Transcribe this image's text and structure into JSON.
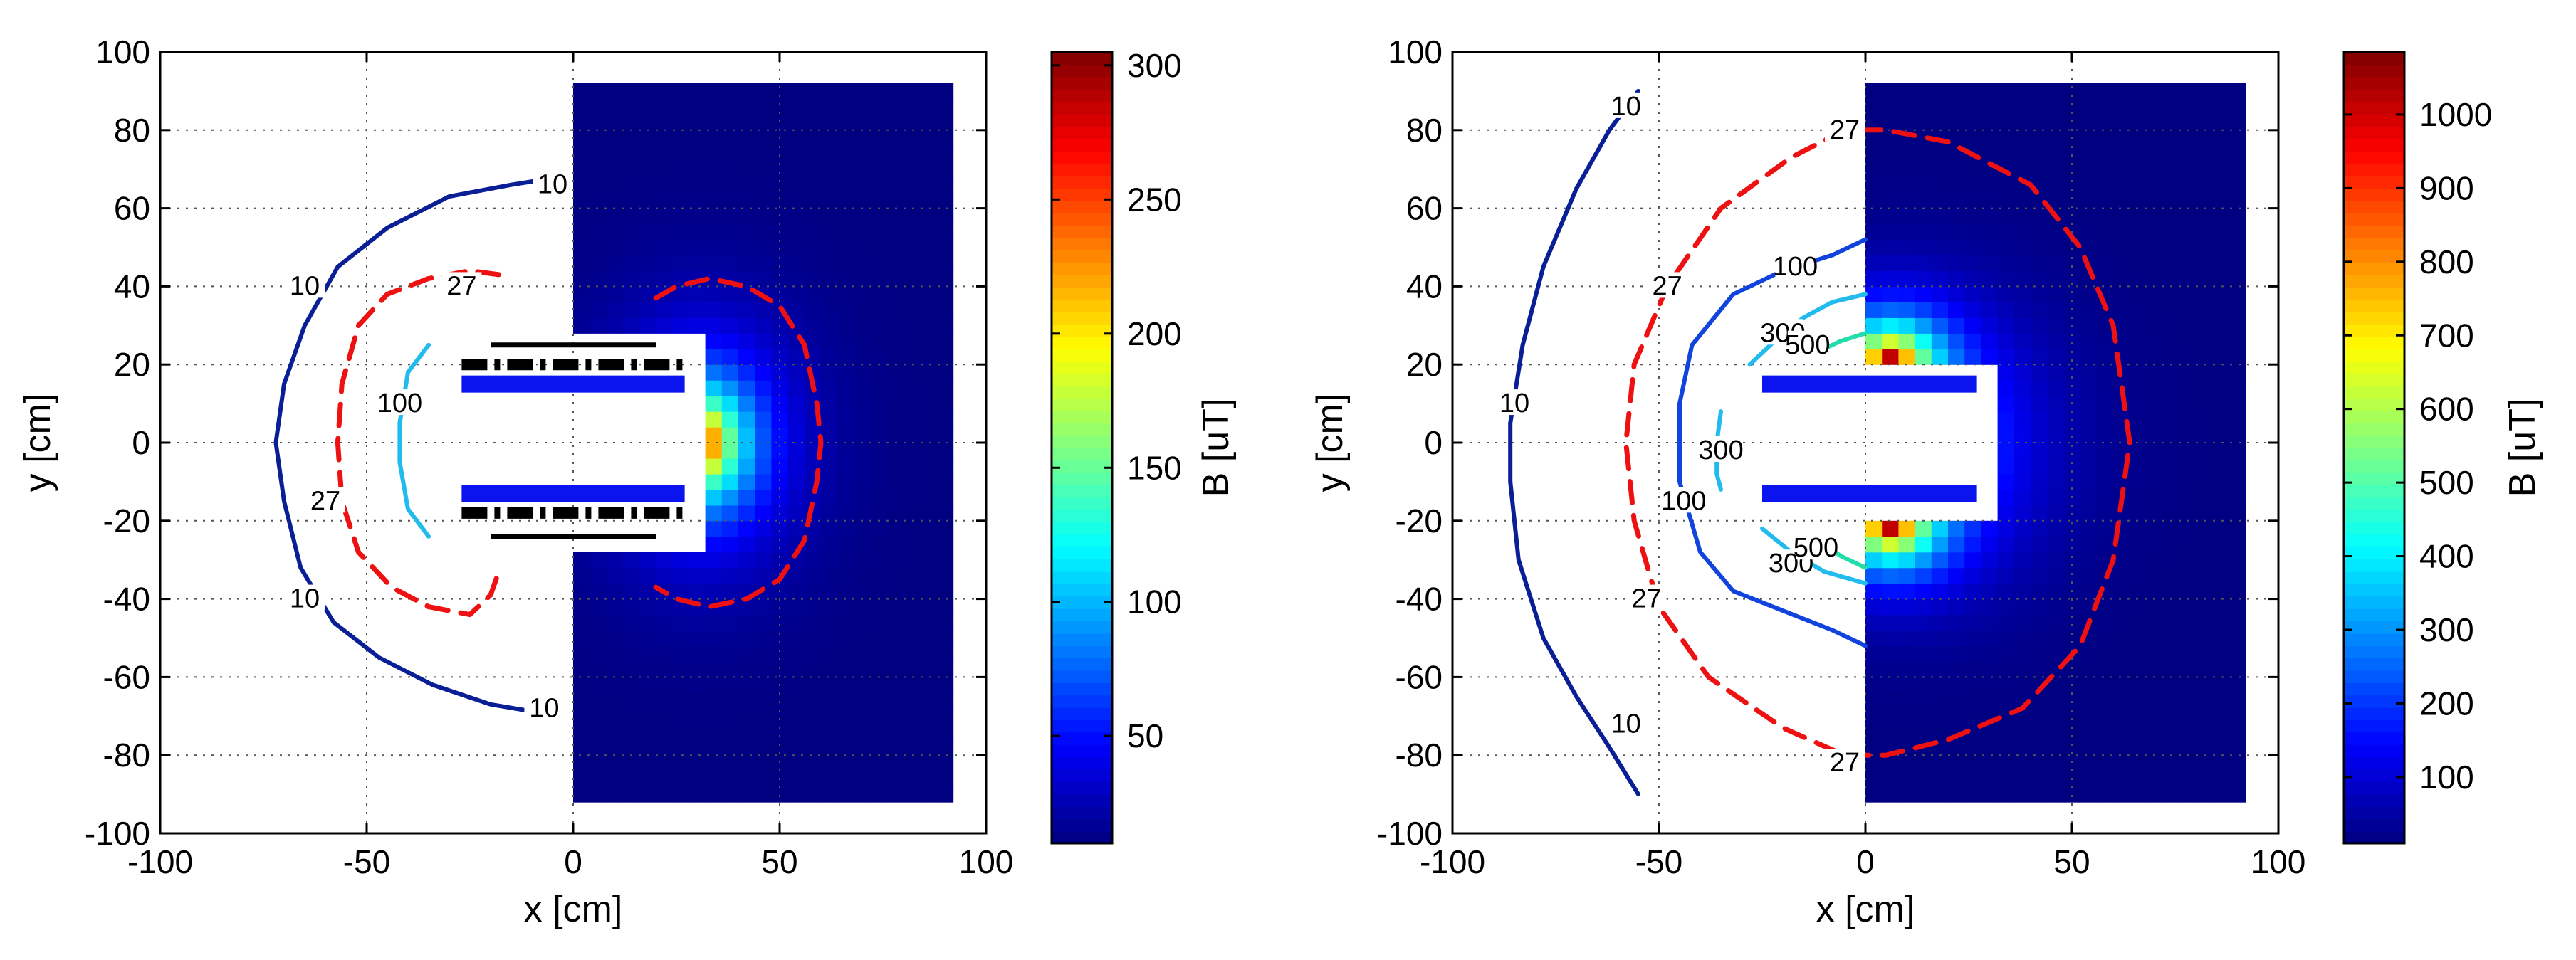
{
  "chart_data": [
    {
      "type": "heatmap",
      "title": "",
      "xlabel": "x [cm]",
      "ylabel": "y [cm]",
      "xlim": [
        -100,
        100
      ],
      "ylim": [
        -100,
        100
      ],
      "xticks": [
        -100,
        -50,
        0,
        50,
        100
      ],
      "yticks": [
        -100,
        -80,
        -60,
        -40,
        -20,
        0,
        20,
        40,
        60,
        80,
        100
      ],
      "grid": true,
      "colorbar": {
        "label": "B [uT]",
        "range": [
          10,
          305
        ],
        "ticks": [
          50,
          100,
          150,
          200,
          250,
          300
        ]
      },
      "field_region": {
        "x": [
          0,
          92
        ],
        "y": [
          -92,
          92
        ],
        "cutout": {
          "x": [
            0,
            30
          ],
          "y": [
            -29,
            29
          ]
        },
        "max_value": 305,
        "peak_location": [
          31,
          0
        ]
      },
      "geometry": {
        "blue_bars": [
          {
            "x": [
              -27,
              27
            ],
            "y": 15
          },
          {
            "x": [
              -27,
              27
            ],
            "y": -13
          }
        ],
        "dash_lines": [
          {
            "x": [
              -27,
              27
            ],
            "y": 20
          },
          {
            "x": [
              -27,
              27
            ],
            "y": -18
          }
        ],
        "black_lines": [
          {
            "x": [
              -20,
              20
            ],
            "y": 25
          },
          {
            "x": [
              -20,
              20
            ],
            "y": -24
          }
        ]
      },
      "contours": [
        {
          "level": 10,
          "label": "10",
          "color": "#0a1e96",
          "style": "solid",
          "points": [
            [
              -3,
              68
            ],
            [
              -15,
              66
            ],
            [
              -30,
              63
            ],
            [
              -45,
              55
            ],
            [
              -57,
              45
            ],
            [
              -65,
              30
            ],
            [
              -70,
              15
            ],
            [
              -72,
              0
            ],
            [
              -70,
              -15
            ],
            [
              -66,
              -32
            ],
            [
              -58,
              -46
            ],
            [
              -47,
              -55
            ],
            [
              -34,
              -62
            ],
            [
              -20,
              -67
            ],
            [
              -3,
              -70
            ]
          ],
          "label_points": [
            [
              -5,
              66
            ],
            [
              -65,
              40
            ],
            [
              -65,
              -40
            ],
            [
              -7,
              -68
            ]
          ]
        },
        {
          "level": 27,
          "label": "27",
          "color": "#ee1111",
          "style": "dashed",
          "points": [
            [
              -18,
              43
            ],
            [
              -25,
              44
            ],
            [
              -35,
              42
            ],
            [
              -45,
              38
            ],
            [
              -52,
              30
            ],
            [
              -56,
              15
            ],
            [
              -57,
              0
            ],
            [
              -56,
              -15
            ],
            [
              -52,
              -28
            ],
            [
              -44,
              -37
            ],
            [
              -35,
              -42
            ],
            [
              -25,
              -44
            ],
            [
              -20,
              -39
            ],
            [
              -18,
              -33
            ]
          ],
          "label_points": [
            [
              -27,
              40
            ],
            [
              -60,
              -15
            ]
          ]
        },
        {
          "level": 27,
          "label": "",
          "color": "#ee1111",
          "style": "dashed",
          "points": [
            [
              20,
              37
            ],
            [
              25,
              40
            ],
            [
              33,
              42
            ],
            [
              42,
              40
            ],
            [
              50,
              35
            ],
            [
              56,
              25
            ],
            [
              59,
              10
            ],
            [
              60,
              0
            ],
            [
              59,
              -10
            ],
            [
              56,
              -25
            ],
            [
              50,
              -35
            ],
            [
              42,
              -40
            ],
            [
              33,
              -42
            ],
            [
              25,
              -40
            ],
            [
              20,
              -37
            ]
          ],
          "label_points": []
        },
        {
          "level": 100,
          "label": "100",
          "color": "#22bbee",
          "style": "solid",
          "points": [
            [
              -35,
              25
            ],
            [
              -40,
              18
            ],
            [
              -42,
              5
            ],
            [
              -42,
              -5
            ],
            [
              -40,
              -17
            ],
            [
              -35,
              -24
            ]
          ],
          "label_points": [
            [
              -42,
              10
            ]
          ]
        }
      ]
    },
    {
      "type": "heatmap",
      "title": "",
      "xlabel": "x [cm]",
      "ylabel": "y [cm]",
      "xlim": [
        -100,
        100
      ],
      "ylim": [
        -100,
        100
      ],
      "xticks": [
        -100,
        -50,
        0,
        50,
        100
      ],
      "yticks": [
        -100,
        -80,
        -60,
        -40,
        -20,
        0,
        20,
        40,
        60,
        80,
        100
      ],
      "grid": true,
      "colorbar": {
        "label": "B [uT]",
        "range": [
          10,
          1085
        ],
        "ticks": [
          100,
          200,
          300,
          400,
          500,
          600,
          700,
          800,
          900,
          1000
        ]
      },
      "field_region": {
        "x": [
          0,
          92
        ],
        "y": [
          -92,
          92
        ],
        "cutout": {
          "x": [
            0,
            30
          ],
          "y": [
            -18,
            18
          ]
        },
        "max_value": 1085,
        "peak_location": [
          5,
          20
        ]
      },
      "geometry": {
        "blue_bars": [
          {
            "x": [
              -25,
              27
            ],
            "y": 15
          },
          {
            "x": [
              -25,
              27
            ],
            "y": -13
          }
        ],
        "dash_lines": [],
        "black_lines": []
      },
      "contours": [
        {
          "level": 10,
          "label": "10",
          "color": "#0a1e96",
          "style": "solid",
          "points": [
            [
              -55,
              90
            ],
            [
              -62,
              80
            ],
            [
              -70,
              65
            ],
            [
              -78,
              45
            ],
            [
              -83,
              25
            ],
            [
              -86,
              5
            ],
            [
              -86,
              -10
            ],
            [
              -84,
              -30
            ],
            [
              -78,
              -50
            ],
            [
              -70,
              -65
            ],
            [
              -62,
              -78
            ],
            [
              -55,
              -90
            ]
          ],
          "label_points": [
            [
              -58,
              86
            ],
            [
              -85,
              10
            ],
            [
              -58,
              -72
            ]
          ]
        },
        {
          "level": 27,
          "label": "27",
          "color": "#ee1111",
          "style": "dashed",
          "points": [
            [
              -5,
              80
            ],
            [
              -18,
              73
            ],
            [
              -35,
              60
            ],
            [
              -48,
              40
            ],
            [
              -56,
              20
            ],
            [
              -58,
              0
            ],
            [
              -56,
              -20
            ],
            [
              -50,
              -42
            ],
            [
              -38,
              -60
            ],
            [
              -20,
              -73
            ],
            [
              -5,
              -80
            ],
            [
              5,
              -80
            ],
            [
              20,
              -76
            ],
            [
              38,
              -68
            ],
            [
              52,
              -52
            ],
            [
              60,
              -30
            ],
            [
              64,
              0
            ],
            [
              60,
              30
            ],
            [
              52,
              50
            ],
            [
              40,
              66
            ],
            [
              20,
              77
            ],
            [
              5,
              80
            ],
            [
              -5,
              80
            ]
          ],
          "label_points": [
            [
              -5,
              80
            ],
            [
              -48,
              40
            ],
            [
              -53,
              -40
            ],
            [
              -5,
              -82
            ]
          ]
        },
        {
          "level": 100,
          "label": "100",
          "color": "#1144dd",
          "style": "solid",
          "points": [
            [
              0,
              52
            ],
            [
              -8,
              48
            ],
            [
              -20,
              44
            ],
            [
              -32,
              38
            ],
            [
              -42,
              25
            ],
            [
              -45,
              10
            ],
            [
              -45,
              -10
            ],
            [
              -40,
              -28
            ],
            [
              -32,
              -38
            ],
            [
              -20,
              -43
            ],
            [
              -8,
              -48
            ],
            [
              0,
              -52
            ]
          ],
          "label_points": [
            [
              -17,
              45
            ],
            [
              -44,
              -15
            ]
          ]
        },
        {
          "level": 300,
          "label": "300",
          "color": "#22bbee",
          "style": "solid",
          "points": [
            [
              0,
              38
            ],
            [
              -8,
              36
            ],
            [
              -15,
              32
            ],
            [
              -20,
              28
            ],
            [
              -28,
              20
            ]
          ],
          "label_points": [
            [
              -20,
              28
            ]
          ]
        },
        {
          "level": 300,
          "label": "300",
          "color": "#22bbee",
          "style": "solid",
          "points": [
            [
              -35,
              8
            ],
            [
              -36,
              0
            ],
            [
              -36,
              -8
            ],
            [
              -35,
              -12
            ]
          ],
          "label_points": [
            [
              -35,
              -2
            ]
          ]
        },
        {
          "level": 300,
          "label": "300",
          "color": "#22bbee",
          "style": "solid",
          "points": [
            [
              -25,
              -22
            ],
            [
              -18,
              -28
            ],
            [
              -10,
              -33
            ],
            [
              0,
              -36
            ]
          ],
          "label_points": [
            [
              -18,
              -31
            ]
          ]
        },
        {
          "level": 500,
          "label": "500",
          "color": "#22ddaa",
          "style": "solid",
          "points": [
            [
              0,
              28
            ],
            [
              -6,
              26
            ],
            [
              -10,
              24
            ]
          ],
          "label_points": [
            [
              -14,
              25
            ]
          ]
        },
        {
          "level": 500,
          "label": "500",
          "color": "#22ddaa",
          "style": "solid",
          "points": [
            [
              -10,
              -26
            ],
            [
              -6,
              -29
            ],
            [
              0,
              -32
            ]
          ],
          "label_points": [
            [
              -12,
              -27
            ]
          ]
        }
      ]
    }
  ]
}
